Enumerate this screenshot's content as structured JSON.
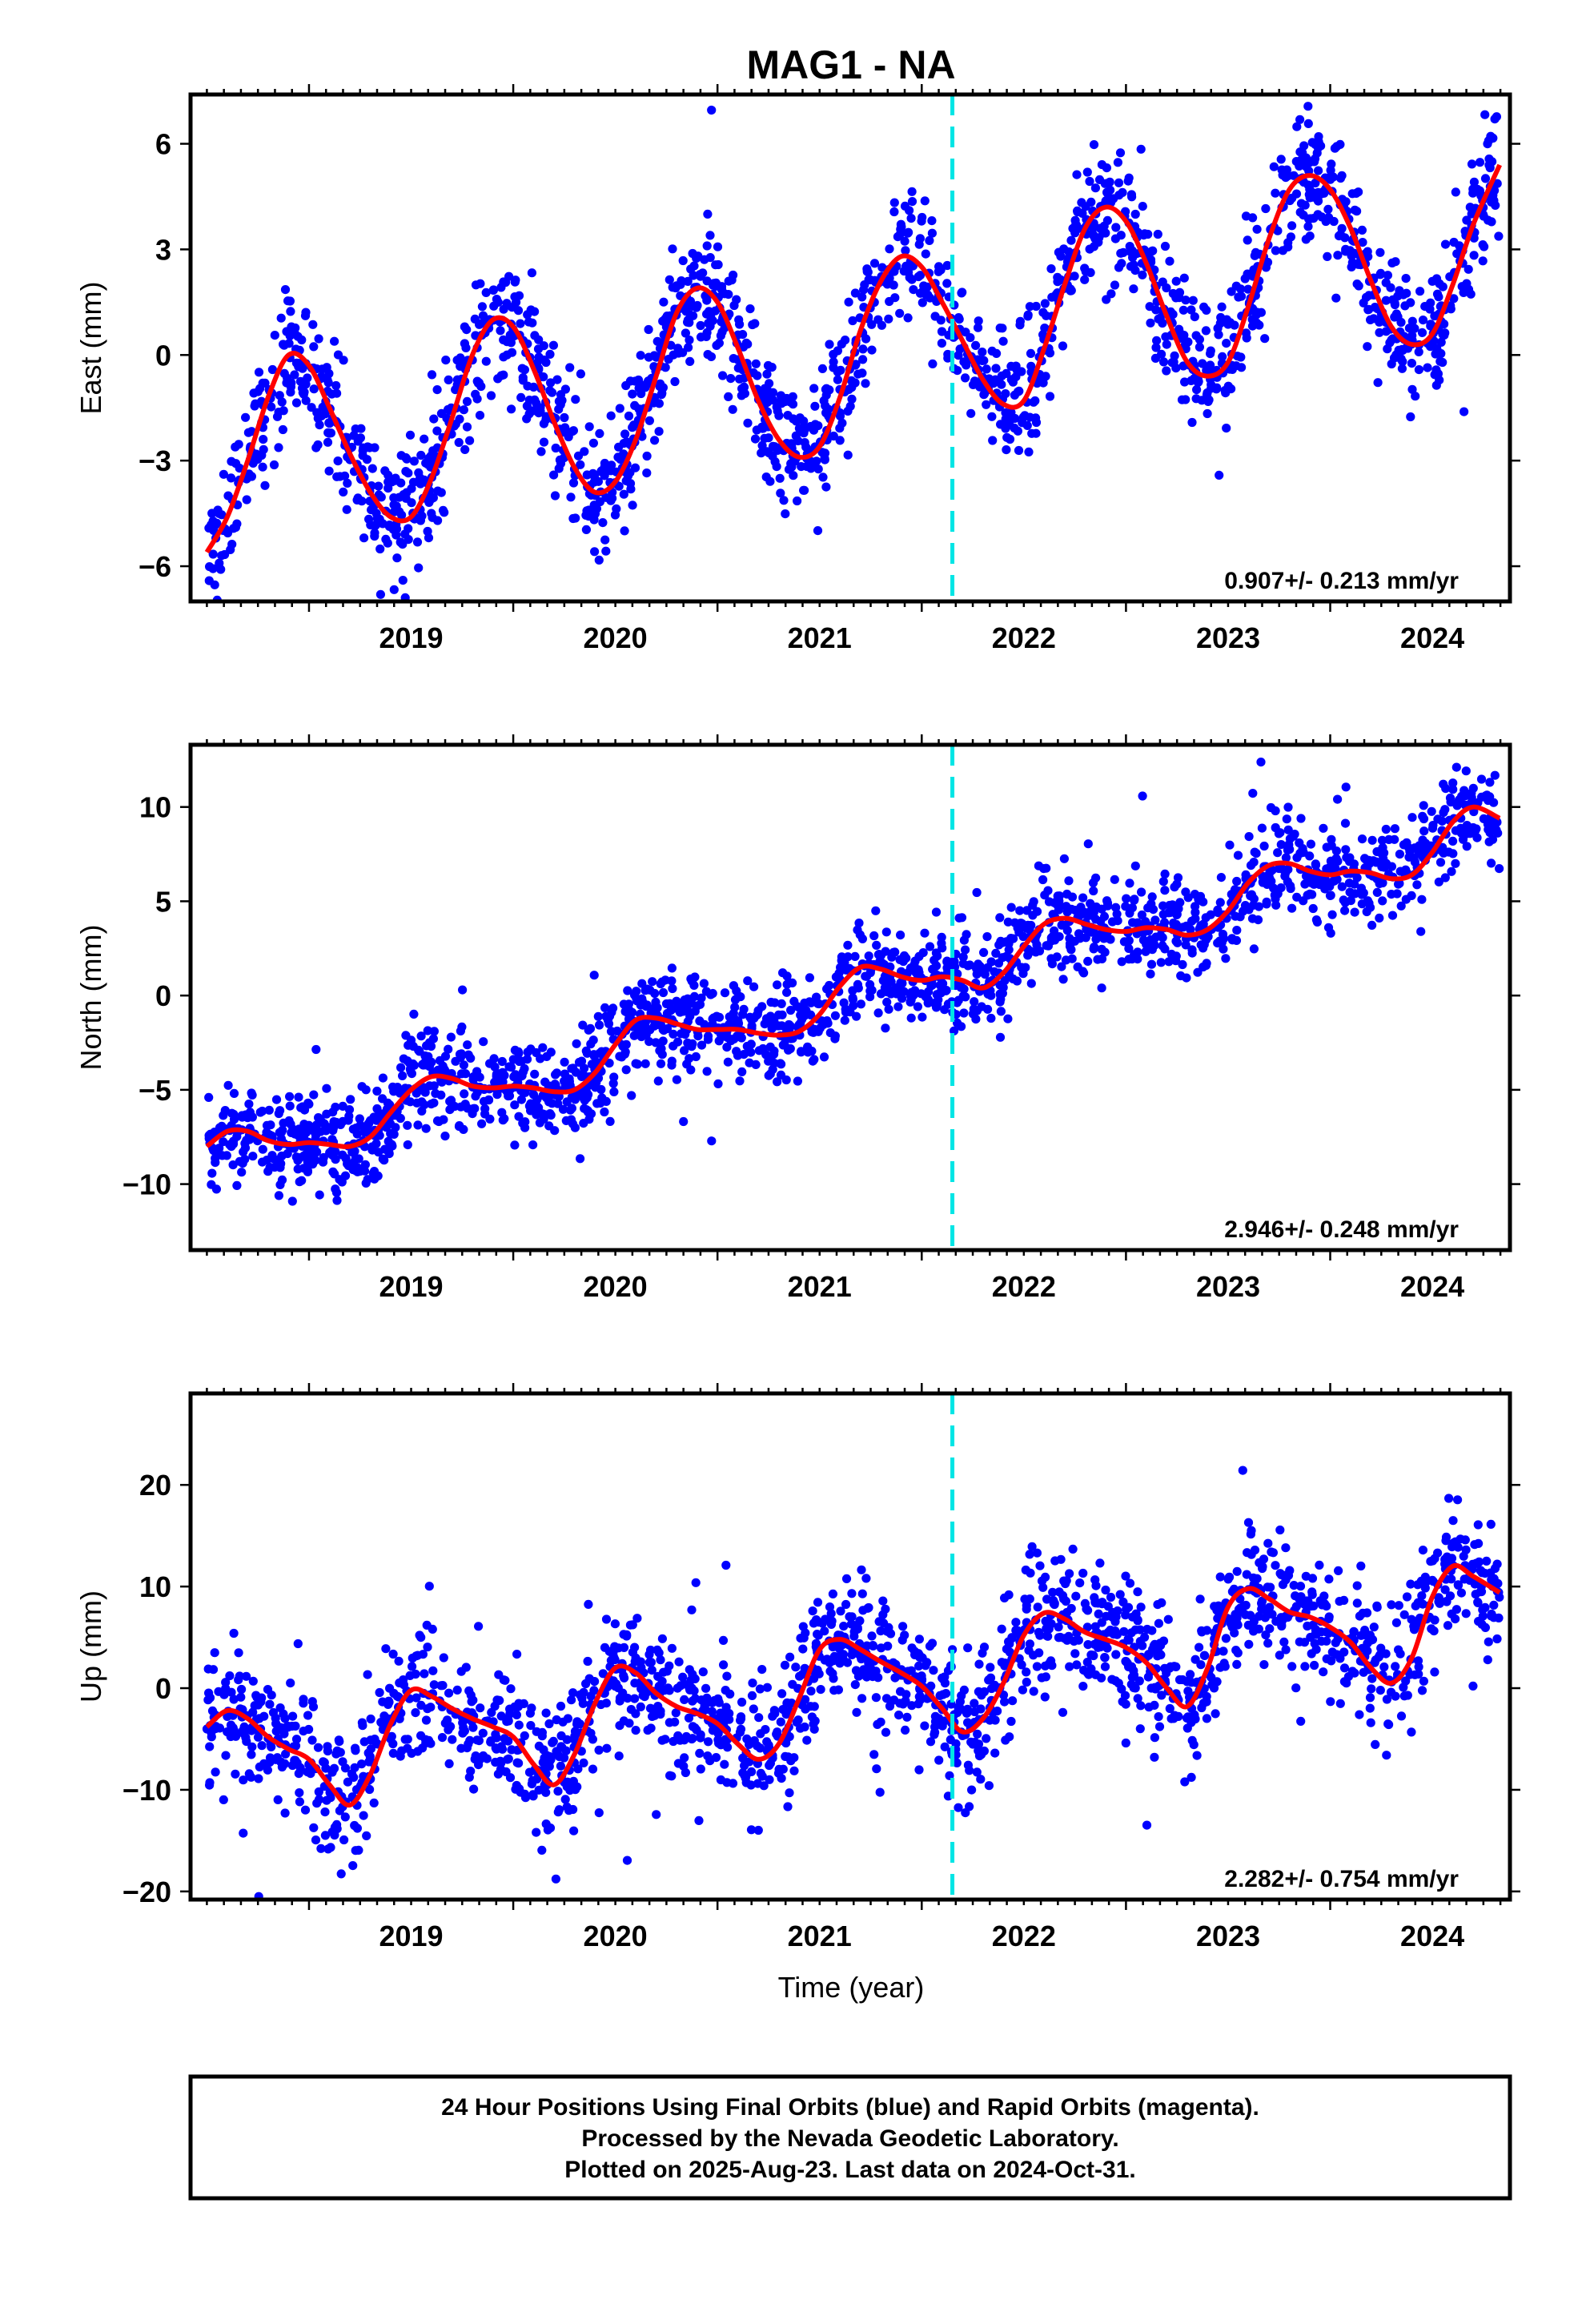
{
  "figure": {
    "title": "MAG1 - NA",
    "xlabel": "Time (year)",
    "footer_lines": [
      "24 Hour Positions Using Final Orbits (blue) and Rapid Orbits (magenta).",
      "Processed by the Nevada Geodetic Laboratory.",
      "Plotted on 2025-Aug-23. Last data on 2024-Oct-31."
    ]
  },
  "colors": {
    "points": "#0000ff",
    "fit": "#ff0000",
    "marker": "#00e5e5",
    "axes": "#000000"
  },
  "chart_data": [
    {
      "type": "scatter",
      "component": "east",
      "ylabel": "East (mm)",
      "rate_text": "0.907+/- 0.213 mm/yr",
      "xlim": [
        2018.42,
        2024.88
      ],
      "ylim": [
        -7.0,
        7.4
      ],
      "xticks": [
        2019,
        2020,
        2021,
        2022,
        2023,
        2024
      ],
      "yticks": [
        -6,
        -3,
        0,
        3,
        6
      ],
      "ytick_labels": [
        "−6",
        "−3",
        "0",
        "3",
        "6"
      ],
      "marker_x": 2022.15,
      "fit": {
        "x": [
          2018.5,
          2018.6,
          2018.7,
          2018.8,
          2018.9,
          2019.0,
          2019.1,
          2019.2,
          2019.3,
          2019.4,
          2019.5,
          2019.6,
          2019.7,
          2019.8,
          2019.9,
          2020.0,
          2020.1,
          2020.2,
          2020.3,
          2020.4,
          2020.5,
          2020.6,
          2020.7,
          2020.8,
          2020.9,
          2021.0,
          2021.1,
          2021.2,
          2021.3,
          2021.4,
          2021.5,
          2021.6,
          2021.7,
          2021.8,
          2021.9,
          2022.0,
          2022.1,
          2022.2,
          2022.3,
          2022.4,
          2022.5,
          2022.6,
          2022.7,
          2022.8,
          2022.9,
          2023.0,
          2023.1,
          2023.2,
          2023.3,
          2023.4,
          2023.5,
          2023.6,
          2023.7,
          2023.8,
          2023.9,
          2024.0,
          2024.1,
          2024.2,
          2024.3,
          2024.4,
          2024.5,
          2024.6,
          2024.7,
          2024.83
        ],
        "y": [
          -5.6,
          -4.6,
          -3.0,
          -1.2,
          0.0,
          -0.3,
          -1.5,
          -2.8,
          -3.9,
          -4.6,
          -4.6,
          -3.5,
          -1.8,
          0.0,
          1.0,
          0.8,
          -0.4,
          -1.9,
          -3.2,
          -3.9,
          -3.6,
          -2.4,
          -0.6,
          1.2,
          1.9,
          1.5,
          0.2,
          -1.3,
          -2.4,
          -2.9,
          -2.6,
          -1.2,
          0.7,
          2.1,
          2.8,
          2.5,
          1.5,
          0.4,
          -0.7,
          -1.4,
          -1.3,
          0.2,
          2.0,
          3.6,
          4.2,
          3.8,
          2.6,
          1.1,
          -0.2,
          -0.6,
          -0.2,
          1.4,
          3.3,
          4.7,
          5.1,
          4.7,
          3.6,
          2.1,
          0.8,
          0.3,
          0.6,
          2.0,
          3.7,
          5.4
        ]
      },
      "scatter_model": {
        "trend_per_year": 0.907,
        "amplitude": 1.7,
        "noise": 0.9,
        "count": 1900,
        "outlier_rate": 0.012
      }
    },
    {
      "type": "scatter",
      "component": "north",
      "ylabel": "North (mm)",
      "rate_text": "2.946+/- 0.248 mm/yr",
      "xlim": [
        2018.42,
        2024.88
      ],
      "ylim": [
        -13.5,
        13.3
      ],
      "xticks": [
        2019,
        2020,
        2021,
        2022,
        2023,
        2024
      ],
      "yticks": [
        -10,
        -5,
        0,
        5,
        10
      ],
      "ytick_labels": [
        "−10",
        "−5",
        "0",
        "5",
        "10"
      ],
      "marker_x": 2022.15,
      "fit": {
        "x": [
          2018.5,
          2018.6,
          2018.7,
          2018.8,
          2018.9,
          2019.0,
          2019.1,
          2019.2,
          2019.3,
          2019.4,
          2019.5,
          2019.6,
          2019.7,
          2019.8,
          2019.9,
          2020.0,
          2020.1,
          2020.2,
          2020.3,
          2020.4,
          2020.5,
          2020.6,
          2020.7,
          2020.8,
          2020.9,
          2021.0,
          2021.1,
          2021.2,
          2021.3,
          2021.4,
          2021.5,
          2021.6,
          2021.7,
          2021.8,
          2021.9,
          2022.0,
          2022.1,
          2022.2,
          2022.3,
          2022.4,
          2022.5,
          2022.6,
          2022.7,
          2022.8,
          2022.9,
          2023.0,
          2023.1,
          2023.2,
          2023.3,
          2023.4,
          2023.5,
          2023.6,
          2023.7,
          2023.8,
          2023.9,
          2024.0,
          2024.1,
          2024.2,
          2024.3,
          2024.4,
          2024.5,
          2024.6,
          2024.7,
          2024.83
        ],
        "y": [
          -8.0,
          -7.2,
          -7.2,
          -7.7,
          -7.9,
          -7.8,
          -7.9,
          -8.0,
          -7.5,
          -6.2,
          -5.0,
          -4.3,
          -4.4,
          -4.8,
          -4.9,
          -4.8,
          -4.9,
          -5.1,
          -5.0,
          -4.1,
          -2.6,
          -1.3,
          -1.2,
          -1.5,
          -1.8,
          -1.8,
          -1.8,
          -2.0,
          -2.1,
          -1.9,
          -1.0,
          0.5,
          1.5,
          1.4,
          1.0,
          0.8,
          1.0,
          0.8,
          0.4,
          1.2,
          2.6,
          3.8,
          4.1,
          3.8,
          3.5,
          3.4,
          3.6,
          3.5,
          3.2,
          3.5,
          4.5,
          6.0,
          6.9,
          7.0,
          6.6,
          6.4,
          6.6,
          6.5,
          6.2,
          6.4,
          7.6,
          9.2,
          10.0,
          9.4
        ]
      },
      "scatter_model": {
        "trend_per_year": 2.946,
        "amplitude": 0.6,
        "noise": 1.3,
        "count": 1900,
        "outlier_rate": 0.012
      }
    },
    {
      "type": "scatter",
      "component": "up",
      "ylabel": "Up (mm)",
      "rate_text": "2.282+/- 0.754 mm/yr",
      "xlim": [
        2018.42,
        2024.88
      ],
      "ylim": [
        -20.8,
        29.0
      ],
      "xticks": [
        2019,
        2020,
        2021,
        2022,
        2023,
        2024
      ],
      "yticks": [
        -20,
        -10,
        0,
        10,
        20
      ],
      "ytick_labels": [
        "−20",
        "−10",
        "0",
        "10",
        "20"
      ],
      "marker_x": 2022.15,
      "fit": {
        "x": [
          2018.5,
          2018.6,
          2018.7,
          2018.8,
          2018.9,
          2019.0,
          2019.1,
          2019.2,
          2019.3,
          2019.4,
          2019.5,
          2019.6,
          2019.7,
          2019.8,
          2019.9,
          2020.0,
          2020.1,
          2020.2,
          2020.3,
          2020.4,
          2020.5,
          2020.6,
          2020.7,
          2020.8,
          2020.9,
          2021.0,
          2021.1,
          2021.2,
          2021.3,
          2021.4,
          2021.5,
          2021.6,
          2021.7,
          2021.8,
          2021.9,
          2022.0,
          2022.1,
          2022.2,
          2022.3,
          2022.4,
          2022.5,
          2022.6,
          2022.7,
          2022.8,
          2022.9,
          2023.0,
          2023.1,
          2023.2,
          2023.3,
          2023.4,
          2023.5,
          2023.6,
          2023.7,
          2023.8,
          2023.9,
          2024.0,
          2024.1,
          2024.2,
          2024.3,
          2024.4,
          2024.5,
          2024.6,
          2024.7,
          2024.83
        ],
        "y": [
          -3.8,
          -2.2,
          -3.0,
          -4.8,
          -6.0,
          -7.0,
          -9.5,
          -11.5,
          -8.5,
          -3.5,
          -0.2,
          -0.8,
          -2.0,
          -3.0,
          -3.8,
          -4.8,
          -7.5,
          -9.5,
          -6.5,
          -1.5,
          2.0,
          1.5,
          -0.5,
          -1.8,
          -2.5,
          -3.5,
          -5.5,
          -7.0,
          -5.5,
          -1.0,
          3.8,
          4.8,
          3.8,
          2.6,
          1.5,
          0.2,
          -2.0,
          -4.3,
          -3.0,
          0.5,
          5.2,
          7.4,
          6.8,
          5.5,
          4.8,
          4.0,
          2.5,
          0.0,
          -1.8,
          2.0,
          8.0,
          9.8,
          8.8,
          7.5,
          7.0,
          6.0,
          4.5,
          2.0,
          0.5,
          3.0,
          9.0,
          12.0,
          11.0,
          9.4
        ]
      },
      "scatter_model": {
        "trend_per_year": 2.282,
        "amplitude": 3.2,
        "noise": 3.3,
        "count": 1900,
        "outlier_rate": 0.012
      }
    }
  ]
}
